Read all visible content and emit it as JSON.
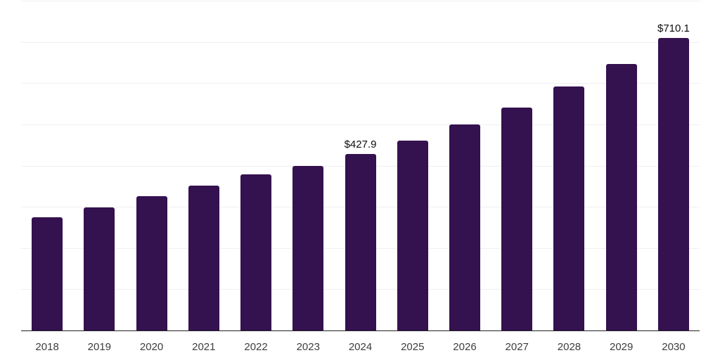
{
  "chart_data": {
    "type": "bar",
    "title": "",
    "xlabel": "",
    "ylabel": "",
    "categories": [
      "2018",
      "2019",
      "2020",
      "2021",
      "2022",
      "2023",
      "2024",
      "2025",
      "2026",
      "2027",
      "2028",
      "2029",
      "2030"
    ],
    "values": [
      274.7,
      299.3,
      326.6,
      352.2,
      379.5,
      398.8,
      427.9,
      461.4,
      499.0,
      541.0,
      591.1,
      646.7,
      710.1
    ],
    "value_labels": {
      "2024": "$427.9",
      "2030": "$710.1"
    },
    "ylim": [
      0,
      800
    ],
    "grid_step": 100,
    "grid": "horizontal",
    "legend_position": "none",
    "y_tick_labels_visible": false,
    "colors": {
      "background": "#ffffff",
      "bar": "#34114f",
      "gridline": "#efefef",
      "axis_line": "#222222",
      "tick_label": "#3d3d3d",
      "value_label": "#0d0d0d"
    }
  }
}
